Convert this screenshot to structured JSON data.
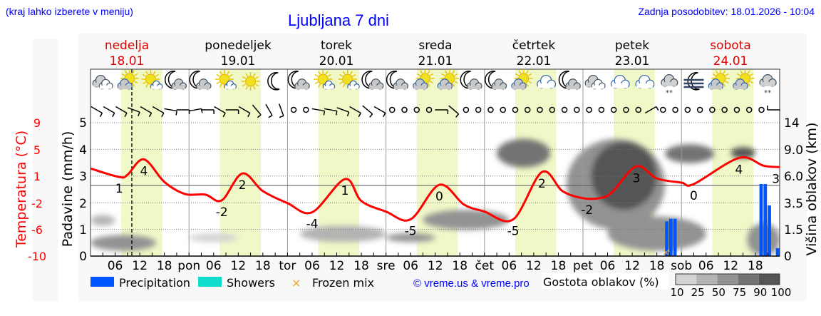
{
  "header": {
    "hint": "(kraj lahko izberete v meniju)",
    "title": "Ljubljana 7 dni",
    "updated": "Zadnja posodobitev: 18.01.2026 - 10:04"
  },
  "days": [
    {
      "name": "nedelja",
      "date": "18.01",
      "color": "#dd0000"
    },
    {
      "name": "ponedeljek",
      "date": "19.01",
      "color": "#000000"
    },
    {
      "name": "torek",
      "date": "20.01",
      "color": "#000000"
    },
    {
      "name": "sreda",
      "date": "21.01",
      "color": "#000000"
    },
    {
      "name": "četrtek",
      "date": "22.01",
      "color": "#000000"
    },
    {
      "name": "petek",
      "date": "23.01",
      "color": "#000000"
    },
    {
      "name": "sobota",
      "date": "24.01",
      "color": "#dd0000"
    }
  ],
  "legend": {
    "precipitation": "Precipitation",
    "showers": "Showers",
    "frozen": "Frozen mix",
    "credit": "© vreme.us & vreme.pro",
    "cloud_title": "Gostota oblakov (%)",
    "cloud_levels": [
      "10",
      "25",
      "50",
      "75",
      "90",
      "100"
    ]
  },
  "colors": {
    "temperature": "#ff0000",
    "precipitation": "#0055ff",
    "showers": "#11ddcc",
    "frozen": "#f0a020",
    "daylight": "#f0f8c8",
    "cloud_scale": [
      "#d3d3d3",
      "#b3b3b3",
      "#939393",
      "#737373",
      "#555555"
    ]
  },
  "chart_data": {
    "type": "line",
    "title": "Ljubljana 7 dni",
    "x_range": [
      "18.01 00:00",
      "25.01 00:00"
    ],
    "x_tick_labels": [
      "06",
      "12",
      "18",
      "pon",
      "06",
      "12",
      "18",
      "tor",
      "06",
      "12",
      "18",
      "sre",
      "06",
      "12",
      "18",
      "čet",
      "06",
      "12",
      "18",
      "pet",
      "06",
      "12",
      "18",
      "sob",
      "06",
      "12",
      "18"
    ],
    "current_time": "18.01 10:04",
    "temperature_axis": {
      "label": "Temperatura (°C)",
      "ticks": [
        "9",
        "5",
        "1",
        "-2",
        "-6",
        "-10"
      ],
      "range": [
        -10,
        8.9
      ]
    },
    "precipitation_axis": {
      "label": "Padavine (mm/h)",
      "ticks": [
        "5",
        "4",
        "3",
        "2",
        "1",
        "0"
      ],
      "range": [
        0,
        5
      ]
    },
    "cloud_axis": {
      "label": "Višina oblakov (km)",
      "ticks": [
        "14",
        "9.0",
        "6.0",
        "3.5",
        "1.5",
        "0"
      ]
    },
    "grid": true,
    "temperature": [
      [
        "18.01 00:00",
        2.4
      ],
      [
        "18.01 07:00",
        1.2
      ],
      [
        "18.01 09:00",
        1.5
      ],
      [
        "18.01 13:00",
        3.7
      ],
      [
        "18.01 18:00",
        0.5
      ],
      [
        "18.01 23:00",
        -1.2
      ],
      [
        "19.01 04:00",
        -1.3
      ],
      [
        "19.01 08:00",
        -2.1
      ],
      [
        "19.01 13:00",
        1.7
      ],
      [
        "19.01 18:00",
        -0.8
      ],
      [
        "20.01 00:00",
        -2.5
      ],
      [
        "20.01 06:00",
        -3.8
      ],
      [
        "20.01 14:00",
        0.9
      ],
      [
        "20.01 18:00",
        -2.2
      ],
      [
        "21.01 00:00",
        -3.7
      ],
      [
        "21.01 06:00",
        -4.8
      ],
      [
        "21.01 13:00",
        0.1
      ],
      [
        "21.01 19:00",
        -2.7
      ],
      [
        "22.01 00:00",
        -3.7
      ],
      [
        "22.01 07:00",
        -4.8
      ],
      [
        "22.01 14:00",
        1.9
      ],
      [
        "22.01 19:00",
        -0.8
      ],
      [
        "23.01 00:00",
        -1.8
      ],
      [
        "23.01 04:00",
        -1.8
      ],
      [
        "23.01 07:00",
        -1.0
      ],
      [
        "23.01 13:00",
        2.7
      ],
      [
        "23.01 18:00",
        1.0
      ],
      [
        "24.01 00:00",
        0.4
      ],
      [
        "24.01 03:00",
        0.2
      ],
      [
        "24.01 14:00",
        3.9
      ],
      [
        "24.01 20:00",
        2.8
      ],
      [
        "25.01 00:00",
        2.6
      ]
    ],
    "temperature_labels": [
      [
        "18.01 07:00",
        1.2,
        "1"
      ],
      [
        "18.01 13:00",
        3.7,
        "4"
      ],
      [
        "19.01 08:00",
        -2.1,
        "-2"
      ],
      [
        "19.01 13:00",
        1.7,
        "2"
      ],
      [
        "20.01 06:00",
        -3.8,
        "-4"
      ],
      [
        "20.01 14:00",
        0.9,
        "1"
      ],
      [
        "21.01 06:00",
        -4.8,
        "-5"
      ],
      [
        "21.01 13:00",
        0.1,
        "0"
      ],
      [
        "22.01 07:00",
        -4.8,
        "-5"
      ],
      [
        "22.01 14:00",
        1.9,
        "2"
      ],
      [
        "23.01 01:00",
        -1.8,
        "-2"
      ],
      [
        "23.01 13:00",
        2.7,
        "3"
      ],
      [
        "24.01 03:00",
        0.2,
        "0"
      ],
      [
        "24.01 14:00",
        3.9,
        "4"
      ],
      [
        "24.01 23:00",
        2.6,
        "3"
      ]
    ],
    "precipitation": [
      [
        "23.01 20:00",
        1.3
      ],
      [
        "23.01 21:00",
        1.4
      ],
      [
        "23.01 22:00",
        1.4
      ],
      [
        "24.01 19:00",
        2.7
      ],
      [
        "24.01 20:00",
        2.7
      ],
      [
        "24.01 21:00",
        1.9
      ],
      [
        "24.01 23:00",
        0.3
      ]
    ],
    "frozen_mix": [
      "23.01 20:00"
    ],
    "cloud_cover": [
      [
        "18.01 00:00",
        "18.01 16:00",
        0.3,
        1.2,
        50
      ],
      [
        "18.01 00:00",
        "18.01 06:00",
        1.8,
        2.6,
        25
      ],
      [
        "19.01 00:00",
        "19.01 12:00",
        0.8,
        1.3,
        10
      ],
      [
        "20.01 03:00",
        "21.01 00:00",
        0.8,
        1.8,
        25
      ],
      [
        "21.01 00:00",
        "21.01 12:00",
        0.8,
        1.3,
        50
      ],
      [
        "21.01 09:00",
        "22.01 06:00",
        1.5,
        3.0,
        50
      ],
      [
        "22.01 03:00",
        "22.01 16:00",
        7.0,
        11.0,
        75
      ],
      [
        "22.01 20:00",
        "23.01 20:00",
        1.5,
        11.0,
        50
      ],
      [
        "23.01 02:00",
        "23.01 18:00",
        3.0,
        10.5,
        90
      ],
      [
        "23.01 06:00",
        "24.01 06:00",
        0.3,
        2.5,
        50
      ],
      [
        "23.01 20:00",
        "24.01 08:00",
        7.5,
        10.0,
        75
      ],
      [
        "24.01 12:00",
        "24.01 18:00",
        8.0,
        9.5,
        90
      ],
      [
        "24.01 16:00",
        "25.01 00:00",
        0.0,
        2.0,
        50
      ]
    ],
    "weather_icons": [
      "overcast",
      "partly-cloudy-day",
      "mostly-sunny",
      "partly-cloudy-night",
      "partly-cloudy-night",
      "mostly-sunny",
      "clear-day",
      "clear-night",
      "partly-cloudy-night",
      "mostly-sunny",
      "mostly-sunny",
      "partly-cloudy-night",
      "partly-cloudy-night",
      "partly-cloudy-day",
      "partly-cloudy-day",
      "partly-cloudy-night",
      "partly-cloudy-night",
      "partly-cloudy-day",
      "cloudy",
      "partly-cloudy-night",
      "overcast",
      "cloudy",
      "cloudy",
      "light-snow",
      "fog-night",
      "partly-cloudy-day",
      "partly-cloudy-day",
      "light-snow"
    ],
    "wind_direction_deg_3h": [
      300,
      300,
      300,
      290,
      300,
      300,
      280,
      270,
      260,
      270,
      300,
      270,
      300,
      320,
      330,
      340,
      "calm",
      "calm",
      280,
      280,
      290,
      300,
      310,
      300,
      "calm",
      "calm",
      "calm",
      "calm",
      270,
      310,
      "calm",
      "calm",
      "calm",
      "calm",
      "calm",
      "calm",
      "calm",
      "calm",
      "calm",
      "calm",
      "calm",
      "calm",
      "calm",
      "calm",
      "calm",
      240,
      "calm",
      "calm",
      "calm",
      "calm",
      "calm",
      "calm",
      "calm",
      "calm",
      "calm",
      90
    ]
  }
}
